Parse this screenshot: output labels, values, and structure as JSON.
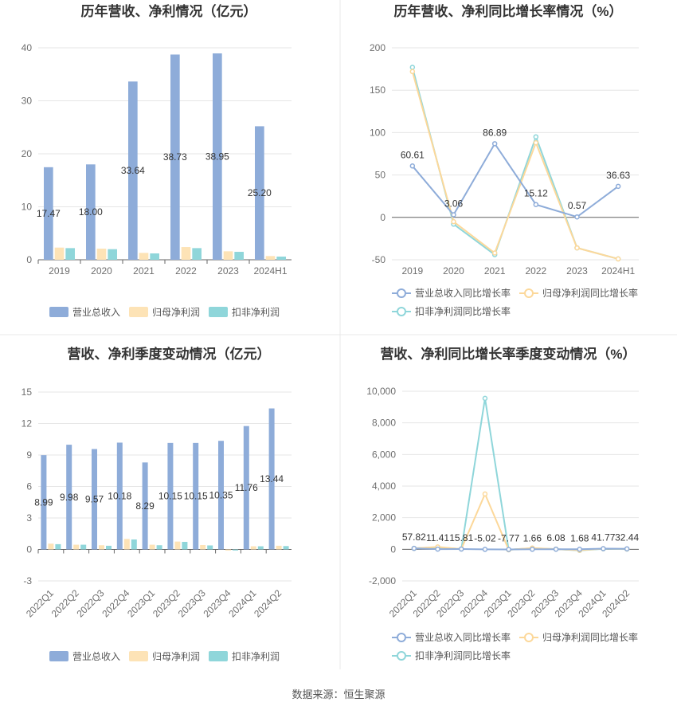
{
  "source": "数据来源：恒生聚源",
  "colors": {
    "revenue_bar": "#8eacd9",
    "netprofit_bar": "#fde3b6",
    "deducted_bar": "#8fd6da",
    "revenue_line": "#8eacd9",
    "netprofit_line": "#fcd89a",
    "deducted_line": "#8fd6da",
    "grid": "#e6e6e6",
    "axis": "#666666",
    "divider": "#e8e8e8"
  },
  "chart_data": [
    {
      "id": "annual-bar",
      "type": "bar",
      "title": "历年营收、净利情况（亿元）",
      "categories": [
        "2019",
        "2020",
        "2021",
        "2022",
        "2023",
        "2024H1"
      ],
      "ylim": [
        0,
        40
      ],
      "yticks": [
        0,
        10,
        20,
        30,
        40
      ],
      "grid": true,
      "legend": "bottom",
      "series": [
        {
          "name": "营业总收入",
          "values": [
            17.47,
            18.0,
            33.64,
            38.73,
            38.95,
            25.2
          ],
          "labels": [
            "17.47",
            "18.00",
            "33.64",
            "38.73",
            "38.95",
            "25.20"
          ]
        },
        {
          "name": "归母净利润",
          "values": [
            2.3,
            2.1,
            1.3,
            2.4,
            1.6,
            0.7
          ]
        },
        {
          "name": "扣非净利润",
          "values": [
            2.2,
            2.0,
            1.2,
            2.2,
            1.5,
            0.6
          ]
        }
      ]
    },
    {
      "id": "annual-line",
      "type": "line",
      "title": "历年营收、净利同比增长率情况（%）",
      "categories": [
        "2019",
        "2020",
        "2021",
        "2022",
        "2023",
        "2024H1"
      ],
      "ylim": [
        -50,
        200
      ],
      "yticks": [
        -50,
        0,
        50,
        100,
        150,
        200
      ],
      "grid": true,
      "legend": "bottom",
      "series": [
        {
          "name": "营业总收入同比增长率",
          "values": [
            60.61,
            3.06,
            86.89,
            15.12,
            0.57,
            36.63
          ],
          "labels": [
            "60.61",
            "3.06",
            "86.89",
            "15.12",
            "0.57",
            "36.63"
          ]
        },
        {
          "name": "归母净利润同比增长率",
          "values": [
            172,
            -5,
            -42,
            88,
            -36,
            -49
          ]
        },
        {
          "name": "扣非净利润同比增长率",
          "values": [
            177,
            -8,
            -44,
            95,
            -36,
            -49
          ]
        }
      ]
    },
    {
      "id": "quarter-bar",
      "type": "bar",
      "title": "营收、净利季度变动情况（亿元）",
      "categories": [
        "2022Q1",
        "2022Q2",
        "2022Q3",
        "2022Q4",
        "2023Q1",
        "2023Q2",
        "2023Q3",
        "2023Q4",
        "2024Q1",
        "2024Q2"
      ],
      "ylim": [
        -3,
        15
      ],
      "yticks": [
        -3,
        0,
        3,
        6,
        9,
        12,
        15
      ],
      "grid": true,
      "legend": "bottom",
      "series": [
        {
          "name": "营业总收入",
          "values": [
            8.99,
            9.98,
            9.57,
            10.18,
            8.29,
            10.15,
            10.15,
            10.35,
            11.76,
            13.44
          ],
          "labels": [
            "8.99",
            "9.98",
            "9.57",
            "10.18",
            "8.29",
            "10.15",
            "10.15",
            "10.35",
            "11.76",
            "13.44"
          ]
        },
        {
          "name": "归母净利润",
          "values": [
            0.55,
            0.45,
            0.4,
            1.0,
            0.45,
            0.75,
            0.42,
            -0.1,
            0.3,
            0.35
          ]
        },
        {
          "name": "扣非净利润",
          "values": [
            0.5,
            0.45,
            0.35,
            0.95,
            0.4,
            0.72,
            0.38,
            -0.1,
            0.3,
            0.32
          ]
        }
      ]
    },
    {
      "id": "quarter-line",
      "type": "line",
      "title": "营收、净利同比增长率季度变动情况（%）",
      "categories": [
        "2022Q1",
        "2022Q2",
        "2022Q3",
        "2022Q4",
        "2023Q1",
        "2023Q2",
        "2023Q3",
        "2023Q4",
        "2024Q1",
        "2024Q2"
      ],
      "ylim": [
        -2000,
        10000
      ],
      "yticks": [
        -2000,
        0,
        2000,
        4000,
        6000,
        8000,
        10000
      ],
      "ytick_labels": [
        "-2,000",
        "0",
        "2,000",
        "4,000",
        "6,000",
        "8,000",
        "10,000"
      ],
      "grid": true,
      "legend": "bottom",
      "series": [
        {
          "name": "营业总收入同比增长率",
          "values": [
            57.82,
            11.41,
            15.81,
            -5.02,
            -7.77,
            1.66,
            6.08,
            1.68,
            41.77,
            32.44
          ],
          "labels": [
            "57.82",
            "11.41",
            "15.81",
            "-5.02",
            "-7.77",
            "1.66",
            "6.08",
            "1.68",
            "41.77",
            "32.44"
          ]
        },
        {
          "name": "归母净利润同比增长率",
          "values": [
            60,
            150,
            20,
            3500,
            -30,
            80,
            10,
            -60,
            40,
            20
          ]
        },
        {
          "name": "扣非净利润同比增长率",
          "values": [
            60,
            130,
            20,
            9550,
            -30,
            70,
            10,
            -70,
            30,
            10
          ]
        }
      ]
    }
  ]
}
